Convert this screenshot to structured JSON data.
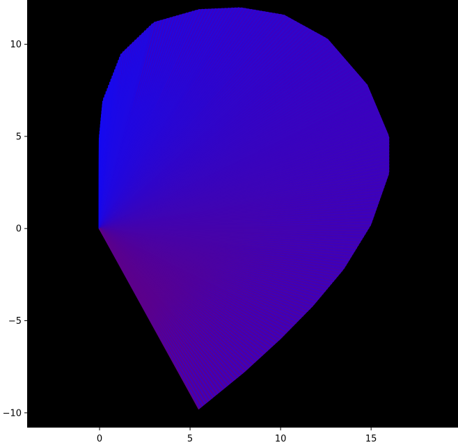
{
  "chart_data": {
    "type": "line",
    "title": "",
    "xlabel": "",
    "ylabel": "",
    "xlim": [
      -4,
      19.8
    ],
    "ylim": [
      -10.8,
      12.4
    ],
    "x_ticks": [
      0,
      5,
      10,
      15
    ],
    "y_ticks": [
      -10,
      -5,
      0,
      5,
      10
    ],
    "x_tick_labels": [
      "0",
      "5",
      "10",
      "15"
    ],
    "y_tick_labels": [
      "−10",
      "−5",
      "0",
      "5",
      "10"
    ],
    "grid": false,
    "background_color": "#000000",
    "series": [
      {
        "label": "fan of line segments from (0,0) to points along the curve",
        "origin": [
          0,
          0
        ],
        "color_start": "#0a0aff",
        "color_end": "#5c008a",
        "endpoints": {
          "x": [
            0.0,
            0.0,
            0.2,
            1.2,
            3.0,
            5.5,
            7.8,
            10.2,
            12.6,
            14.8,
            16.0,
            16.0,
            15.0,
            13.5,
            11.8,
            10.0,
            8.0,
            5.5
          ],
          "y": [
            0.0,
            5.0,
            7.0,
            9.5,
            11.2,
            11.9,
            12.0,
            11.6,
            10.3,
            7.8,
            5.0,
            3.0,
            0.2,
            -2.2,
            -4.2,
            -6.0,
            -7.8,
            -9.8
          ]
        }
      }
    ]
  }
}
